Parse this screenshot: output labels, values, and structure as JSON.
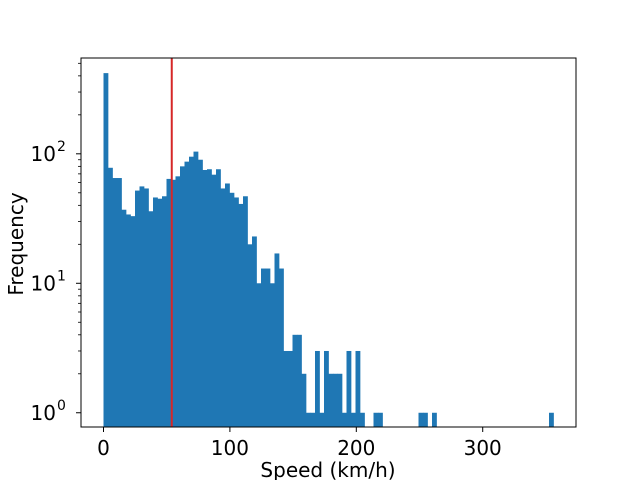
{
  "chart_data": {
    "type": "bar",
    "title": "",
    "xlabel": "Speed (km/h)",
    "ylabel": "Frequency",
    "xlim": [
      -17.8,
      373.8
    ],
    "ylim_log10": [
      -0.11,
      2.74
    ],
    "yscale": "log",
    "grid": false,
    "bar_color": "#1f77b4",
    "bin_width": 3.56,
    "bin_start": 0,
    "x_ticks": [
      {
        "value": 0,
        "label": "0"
      },
      {
        "value": 100,
        "label": "100"
      },
      {
        "value": 200,
        "label": "200"
      },
      {
        "value": 300,
        "label": "300"
      }
    ],
    "y_ticks": [
      {
        "value": 1,
        "label": "10",
        "exp": "0"
      },
      {
        "value": 10,
        "label": "10",
        "exp": "1"
      },
      {
        "value": 100,
        "label": "10",
        "exp": "2"
      }
    ],
    "values": [
      420,
      78,
      65,
      65,
      37,
      34,
      33,
      52,
      56,
      54,
      36,
      46,
      45,
      47,
      64,
      63,
      67,
      80,
      87,
      95,
      104,
      90,
      75,
      76,
      69,
      76,
      54,
      59,
      50,
      46,
      41,
      47,
      20,
      23,
      10,
      13,
      13,
      10,
      17,
      13,
      3,
      3,
      4,
      4,
      2,
      1,
      1,
      3,
      1,
      3,
      2,
      2,
      2,
      1,
      3,
      1,
      3,
      1,
      0,
      0,
      1,
      1,
      0,
      0,
      0,
      0,
      0,
      0,
      0,
      0,
      1,
      1,
      0,
      1,
      0,
      0,
      0,
      0,
      0,
      0,
      0,
      0,
      0,
      0,
      0,
      0,
      0,
      0,
      0,
      0,
      0,
      0,
      0,
      0,
      0,
      0,
      0,
      0,
      0,
      1
    ],
    "reference_line": {
      "x": 54,
      "color": "#d62728"
    }
  }
}
